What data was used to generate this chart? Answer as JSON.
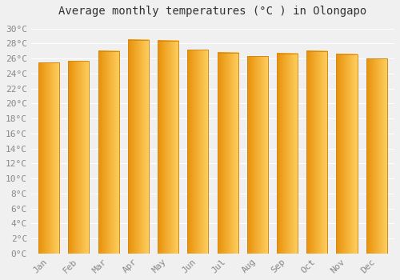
{
  "title": "Average monthly temperatures (°C ) in Olongapo",
  "months": [
    "Jan",
    "Feb",
    "Mar",
    "Apr",
    "May",
    "Jun",
    "Jul",
    "Aug",
    "Sep",
    "Oct",
    "Nov",
    "Dec"
  ],
  "values": [
    25.5,
    25.7,
    27.0,
    28.5,
    28.4,
    27.2,
    26.8,
    26.3,
    26.7,
    27.0,
    26.6,
    26.0
  ],
  "bar_color": "#F5A623",
  "bar_edge_color": "#D4881A",
  "bar_gradient_right": "#FFCD5E",
  "ylim": [
    0,
    31
  ],
  "yticks": [
    0,
    2,
    4,
    6,
    8,
    10,
    12,
    14,
    16,
    18,
    20,
    22,
    24,
    26,
    28,
    30
  ],
  "background_color": "#f0f0f0",
  "grid_color": "#ffffff",
  "title_fontsize": 10,
  "tick_fontsize": 8,
  "font_family": "monospace"
}
